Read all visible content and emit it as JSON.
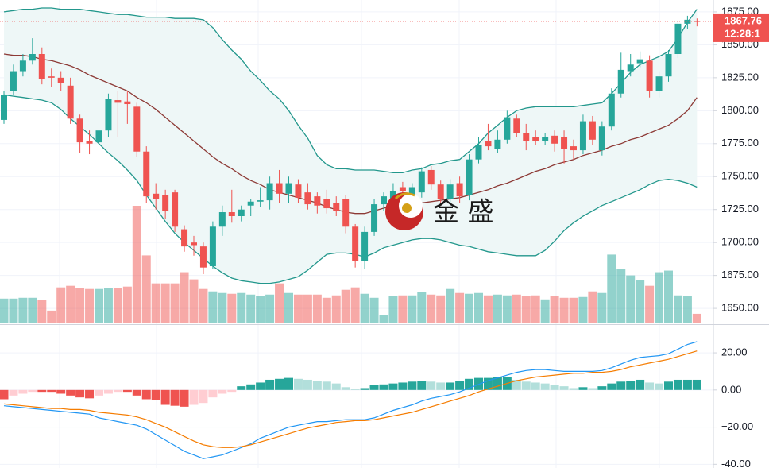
{
  "chart_data": [
    {
      "type": "candlestick",
      "watermark": "金 盛",
      "last_price": 1867.76,
      "time_label": "12:28:1",
      "ylim": [
        1638,
        1884
      ],
      "yticks": [
        {
          "value": 1650,
          "label": "1650.00"
        },
        {
          "value": 1675,
          "label": "1675.00"
        },
        {
          "value": 1700,
          "label": "1700.00"
        },
        {
          "value": 1725,
          "label": "1725.00"
        },
        {
          "value": 1750,
          "label": "1750.00"
        },
        {
          "value": 1775,
          "label": "1775.00"
        },
        {
          "value": 1800,
          "label": "1800.00"
        },
        {
          "value": 1825,
          "label": "1825.00"
        },
        {
          "value": 1850,
          "label": "1850.00"
        },
        {
          "value": 1875,
          "label": "1875.00"
        }
      ],
      "grid": true,
      "up_color": "#26a69a",
      "down_color": "#ef5350",
      "band_fill": "#eef7f7",
      "open": [
        1793,
        1815,
        1830,
        1838,
        1843,
        1826,
        1825,
        1819,
        1794,
        1777,
        1776,
        1785,
        1808,
        1807,
        1803,
        1769,
        1737,
        1736,
        1738,
        1710,
        1700,
        1697,
        1682,
        1712,
        1723,
        1720,
        1728,
        1731,
        1732,
        1745,
        1737,
        1744,
        1738,
        1735,
        1733,
        1730,
        1733,
        1712,
        1686,
        1708,
        1729,
        1733,
        1742,
        1735,
        1738,
        1755,
        1744,
        1733,
        1745,
        1736,
        1763,
        1777,
        1771,
        1778,
        1794,
        1783,
        1780,
        1777,
        1781,
        1780,
        1773,
        1770,
        1792,
        1770,
        1788,
        1813,
        1830,
        1836,
        1838,
        1815,
        1826,
        1843,
        1866,
        1868
      ],
      "high": [
        1815,
        1835,
        1843,
        1855,
        1848,
        1832,
        1830,
        1825,
        1797,
        1785,
        1790,
        1813,
        1815,
        1815,
        1806,
        1773,
        1745,
        1740,
        1740,
        1713,
        1705,
        1700,
        1716,
        1728,
        1740,
        1728,
        1733,
        1742,
        1750,
        1755,
        1750,
        1748,
        1745,
        1738,
        1740,
        1735,
        1736,
        1714,
        1712,
        1733,
        1738,
        1745,
        1746,
        1745,
        1757,
        1758,
        1747,
        1748,
        1750,
        1767,
        1780,
        1790,
        1785,
        1800,
        1797,
        1790,
        1785,
        1783,
        1785,
        1785,
        1778,
        1797,
        1796,
        1792,
        1817,
        1844,
        1843,
        1845,
        1842,
        1830,
        1846,
        1868,
        1872,
        1870
      ],
      "low": [
        1790,
        1812,
        1826,
        1835,
        1820,
        1818,
        1815,
        1790,
        1768,
        1767,
        1762,
        1780,
        1780,
        1790,
        1765,
        1730,
        1725,
        1718,
        1708,
        1693,
        1690,
        1676,
        1680,
        1705,
        1715,
        1716,
        1720,
        1727,
        1725,
        1730,
        1730,
        1730,
        1725,
        1722,
        1722,
        1720,
        1707,
        1681,
        1680,
        1705,
        1724,
        1730,
        1734,
        1732,
        1734,
        1740,
        1728,
        1728,
        1730,
        1732,
        1760,
        1770,
        1768,
        1775,
        1780,
        1770,
        1774,
        1774,
        1769,
        1760,
        1763,
        1767,
        1774,
        1766,
        1785,
        1810,
        1826,
        1833,
        1810,
        1810,
        1822,
        1840,
        1862,
        1864
      ],
      "close": [
        1812,
        1830,
        1838,
        1843,
        1824,
        1825,
        1821,
        1794,
        1776,
        1775,
        1785,
        1809,
        1806,
        1805,
        1769,
        1735,
        1733,
        1724,
        1712,
        1697,
        1698,
        1681,
        1712,
        1723,
        1720,
        1725,
        1731,
        1732,
        1745,
        1737,
        1745,
        1734,
        1729,
        1728,
        1726,
        1724,
        1712,
        1686,
        1708,
        1729,
        1735,
        1739,
        1739,
        1742,
        1754,
        1744,
        1733,
        1744,
        1735,
        1763,
        1774,
        1773,
        1778,
        1795,
        1783,
        1777,
        1777,
        1780,
        1775,
        1771,
        1770,
        1792,
        1778,
        1788,
        1813,
        1831,
        1835,
        1839,
        1815,
        1826,
        1843,
        1866,
        1869,
        1867.76
      ],
      "volume": [
        31,
        31,
        32,
        32,
        29,
        16,
        45,
        47,
        44,
        43,
        43,
        44,
        44,
        46,
        147,
        85,
        50,
        50,
        50,
        64,
        55,
        43,
        40,
        38,
        37,
        38,
        36,
        34,
        36,
        50,
        38,
        36,
        36,
        36,
        32,
        35,
        42,
        45,
        37,
        32,
        10,
        34,
        35,
        35,
        39,
        36,
        35,
        43,
        38,
        37,
        38,
        35,
        36,
        35,
        36,
        34,
        35,
        30,
        34,
        32,
        32,
        33,
        40,
        38,
        86,
        68,
        60,
        54,
        47,
        64,
        66,
        35,
        34,
        12
      ],
      "series": [
        {
          "color": "#22978c",
          "values": [
            1875,
            1876,
            1877,
            1877,
            1878,
            1878,
            1877,
            1877,
            1877,
            1876,
            1875,
            1874,
            1873,
            1873,
            1872,
            1871,
            1871,
            1871,
            1870,
            1870,
            1870,
            1869,
            1863,
            1854,
            1846,
            1839,
            1830,
            1823,
            1815,
            1809,
            1800,
            1789,
            1779,
            1766,
            1759,
            1756,
            1756,
            1755,
            1755,
            1755,
            1754,
            1753,
            1753,
            1755,
            1756,
            1759,
            1760,
            1762,
            1763,
            1769,
            1775,
            1783,
            1789,
            1795,
            1800,
            1802,
            1803,
            1803,
            1803,
            1803,
            1803,
            1804,
            1805,
            1806,
            1813,
            1821,
            1829,
            1835,
            1838,
            1841,
            1845,
            1855,
            1867,
            1877
          ]
        },
        {
          "color": "#8d3a36",
          "values": [
            1843,
            1842,
            1842,
            1841,
            1839,
            1838,
            1836,
            1834,
            1831,
            1827,
            1824,
            1821,
            1818,
            1815,
            1810,
            1806,
            1801,
            1795,
            1789,
            1783,
            1777,
            1771,
            1765,
            1760,
            1756,
            1751,
            1747,
            1744,
            1740,
            1738,
            1736,
            1734,
            1732,
            1730,
            1727,
            1725,
            1723,
            1722,
            1722,
            1724,
            1726,
            1728,
            1729,
            1730,
            1730,
            1731,
            1732,
            1733,
            1734,
            1736,
            1738,
            1740,
            1743,
            1745,
            1748,
            1751,
            1754,
            1756,
            1759,
            1761,
            1763,
            1766,
            1768,
            1770,
            1773,
            1775,
            1778,
            1780,
            1783,
            1786,
            1789,
            1794,
            1800,
            1810
          ]
        },
        {
          "color": "#22978c",
          "values": [
            1812,
            1811,
            1810,
            1809,
            1808,
            1806,
            1801,
            1794,
            1788,
            1782,
            1775,
            1768,
            1762,
            1755,
            1747,
            1736,
            1726,
            1716,
            1707,
            1700,
            1694,
            1688,
            1682,
            1677,
            1673,
            1671,
            1670,
            1669,
            1669,
            1670,
            1672,
            1674,
            1679,
            1685,
            1691,
            1692,
            1692,
            1691,
            1689,
            1692,
            1696,
            1698,
            1700,
            1702,
            1703,
            1703,
            1702,
            1700,
            1698,
            1697,
            1695,
            1693,
            1692,
            1691,
            1690,
            1690,
            1690,
            1694,
            1701,
            1709,
            1715,
            1720,
            1724,
            1728,
            1731,
            1734,
            1737,
            1740,
            1744,
            1747,
            1748,
            1747,
            1745,
            1742
          ]
        }
      ]
    },
    {
      "type": "macd",
      "ylim": [
        -42,
        35
      ],
      "yticks": [
        {
          "value": 20,
          "label": "20.00"
        },
        {
          "value": 0,
          "label": "0.00"
        },
        {
          "value": -20,
          "label": "−20.00"
        },
        {
          "value": -40,
          "label": "-40.00"
        }
      ],
      "grid": true,
      "up_color": "#26a69a",
      "up_light_color": "#b2dfdb",
      "down_color": "#ef5350",
      "down_light_color": "#ffcdd2",
      "histogram": [
        -5,
        -3,
        -2,
        -1,
        -1,
        -1,
        -2,
        -3,
        -4,
        -4.5,
        -3,
        -2,
        -1,
        -1,
        -3,
        -5,
        -5.5,
        -8,
        -8.5,
        -9,
        -8,
        -7,
        -4,
        -2,
        -1,
        2,
        3,
        4,
        5.5,
        6,
        6.5,
        6,
        5.5,
        5,
        4.5,
        3.5,
        1.5,
        0.5,
        1,
        2.5,
        3,
        3.5,
        4,
        4.5,
        5,
        4.5,
        4,
        4,
        5,
        6,
        6.5,
        6.5,
        7,
        7,
        5.5,
        4.5,
        4,
        3.5,
        2.5,
        2,
        1,
        1.5,
        1,
        2,
        3.5,
        4.5,
        5,
        5.5,
        4,
        3.5,
        4.5,
        5.5,
        5.5,
        5.5
      ],
      "series": [
        {
          "color": "#2196f3",
          "values": [
            -8.5,
            -9,
            -9.5,
            -10,
            -10.5,
            -11,
            -11.5,
            -12,
            -12.5,
            -13,
            -15,
            -16,
            -17,
            -18,
            -19,
            -21,
            -24,
            -27,
            -30,
            -33,
            -35,
            -37,
            -36,
            -35,
            -33,
            -31,
            -29,
            -26,
            -24,
            -22,
            -20,
            -19,
            -18,
            -17,
            -17,
            -16.5,
            -16,
            -16,
            -16,
            -15,
            -13,
            -11,
            -9.5,
            -8,
            -6,
            -4.5,
            -3.5,
            -2.5,
            -1,
            1,
            3,
            5,
            6.5,
            8,
            9.5,
            10.5,
            11,
            11,
            10.5,
            10,
            10,
            10,
            10,
            10.5,
            12,
            14,
            16,
            17.5,
            18,
            18.5,
            19.5,
            22,
            24.5,
            26
          ]
        },
        {
          "color": "#f57c00",
          "values": [
            -7.5,
            -8,
            -8.5,
            -9,
            -9.5,
            -10,
            -10,
            -10.5,
            -10.5,
            -11,
            -12,
            -12.5,
            -13,
            -13.5,
            -14.5,
            -16,
            -18,
            -20,
            -22.5,
            -25,
            -27.5,
            -29.5,
            -30.5,
            -31,
            -31,
            -30.5,
            -29.5,
            -28,
            -26.5,
            -25,
            -23.5,
            -22,
            -20.5,
            -19.5,
            -18.5,
            -17.5,
            -17,
            -16.5,
            -16.5,
            -16,
            -15,
            -14,
            -13,
            -12,
            -10.5,
            -9,
            -7.5,
            -6,
            -4.5,
            -3,
            -1,
            0.5,
            2,
            3.5,
            5,
            6,
            7,
            7.5,
            8,
            8.5,
            9,
            9,
            9.5,
            9.5,
            10,
            11,
            12.5,
            13.5,
            14.5,
            15.5,
            16.5,
            18,
            19.5,
            21
          ]
        }
      ]
    }
  ]
}
